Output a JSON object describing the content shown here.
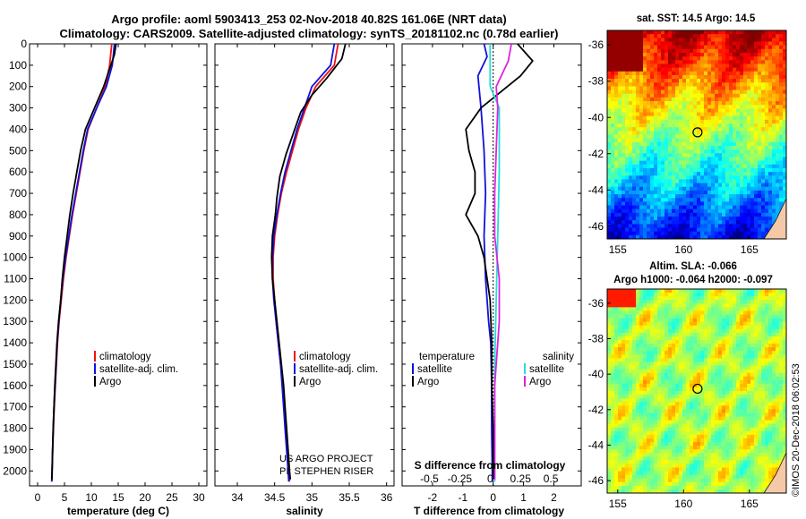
{
  "title_line1": "Argo profile: aoml 5903413_253 02-Nov-2018 40.82S 161.06E (NRT data)",
  "title_line2": "Climatology: CARS2009. Satellite-adjusted climatology: synTS_20181102.nc (0.78d earlier)",
  "credit_line1": "US ARGO PROJECT",
  "credit_line2": "PI: STEPHEN RISER",
  "side_stamp": "©IMOS 20-Dec-2018 06:02:53",
  "colors": {
    "climatology": "#ee1111",
    "satellite": "#1111dd",
    "argo": "#000000",
    "sat_salinity": "#22dddd",
    "argo_salinity": "#dd22dd"
  },
  "chart_data": [
    {
      "type": "line",
      "name": "temperature-profile",
      "xlabel": "temperature (deg C)",
      "xlim": [
        -1.5,
        31.5
      ],
      "xticks": [
        0,
        5,
        10,
        15,
        20,
        25,
        30
      ],
      "ylim": [
        0,
        2070
      ],
      "yticks": [
        0,
        100,
        200,
        300,
        400,
        500,
        600,
        700,
        800,
        900,
        1000,
        1100,
        1200,
        1300,
        1400,
        1500,
        1600,
        1700,
        1800,
        1900,
        2000
      ],
      "legend": [
        "climatology",
        "satellite-adj. clim.",
        "Argo"
      ],
      "series": [
        {
          "name": "climatology",
          "color": "#ee1111",
          "points": [
            [
              13.8,
              0
            ],
            [
              13.4,
              100
            ],
            [
              12.6,
              200
            ],
            [
              11.0,
              300
            ],
            [
              9.4,
              400
            ],
            [
              8.6,
              500
            ],
            [
              7.9,
              600
            ],
            [
              7.2,
              700
            ],
            [
              6.5,
              800
            ],
            [
              5.9,
              900
            ],
            [
              5.3,
              1000
            ],
            [
              4.8,
              1100
            ],
            [
              4.4,
              1200
            ],
            [
              4.0,
              1300
            ],
            [
              3.7,
              1400
            ],
            [
              3.5,
              1500
            ],
            [
              3.3,
              1600
            ],
            [
              3.1,
              1700
            ],
            [
              2.95,
              1800
            ],
            [
              2.8,
              1900
            ],
            [
              2.7,
              2000
            ],
            [
              2.65,
              2050
            ]
          ]
        },
        {
          "name": "satellite-adj. clim.",
          "color": "#1111dd",
          "points": [
            [
              14.3,
              0
            ],
            [
              13.9,
              100
            ],
            [
              12.8,
              200
            ],
            [
              11.0,
              300
            ],
            [
              9.3,
              400
            ],
            [
              8.5,
              500
            ],
            [
              7.8,
              600
            ],
            [
              7.1,
              700
            ],
            [
              6.4,
              800
            ],
            [
              5.8,
              900
            ],
            [
              5.2,
              1000
            ],
            [
              4.7,
              1100
            ],
            [
              4.3,
              1200
            ],
            [
              3.95,
              1300
            ],
            [
              3.65,
              1400
            ],
            [
              3.45,
              1500
            ],
            [
              3.25,
              1600
            ],
            [
              3.05,
              1700
            ],
            [
              2.9,
              1800
            ],
            [
              2.78,
              1900
            ],
            [
              2.68,
              2000
            ],
            [
              2.62,
              2050
            ]
          ]
        },
        {
          "name": "Argo",
          "color": "#000000",
          "points": [
            [
              14.6,
              0
            ],
            [
              14.3,
              50
            ],
            [
              12.3,
              200
            ],
            [
              10.6,
              300
            ],
            [
              8.9,
              400
            ],
            [
              8.0,
              500
            ],
            [
              7.3,
              600
            ],
            [
              6.6,
              700
            ],
            [
              6.0,
              800
            ],
            [
              5.5,
              900
            ],
            [
              5.0,
              1000
            ],
            [
              4.6,
              1100
            ],
            [
              4.3,
              1200
            ],
            [
              3.9,
              1300
            ],
            [
              3.6,
              1400
            ],
            [
              3.4,
              1500
            ],
            [
              3.2,
              1600
            ],
            [
              3.05,
              1700
            ],
            [
              2.9,
              1800
            ],
            [
              2.8,
              1900
            ],
            [
              2.7,
              2000
            ],
            [
              2.65,
              2040
            ]
          ]
        }
      ]
    },
    {
      "type": "line",
      "name": "salinity-profile",
      "xlabel": "salinity",
      "xlim": [
        33.7,
        36.1
      ],
      "xticks": [
        34,
        34.5,
        35,
        35.5,
        36
      ],
      "xtick_labels": [
        "34",
        "34.5",
        "35",
        "35.5",
        "36"
      ],
      "ylim": [
        0,
        2070
      ],
      "legend": [
        "climatology",
        "satellite-adj. clim.",
        "Argo"
      ],
      "series": [
        {
          "name": "climatology",
          "color": "#ee1111",
          "points": [
            [
              35.35,
              0
            ],
            [
              35.3,
              100
            ],
            [
              35.05,
              200
            ],
            [
              34.92,
              300
            ],
            [
              34.82,
              400
            ],
            [
              34.74,
              500
            ],
            [
              34.66,
              600
            ],
            [
              34.59,
              700
            ],
            [
              34.54,
              800
            ],
            [
              34.5,
              900
            ],
            [
              34.48,
              1000
            ],
            [
              34.48,
              1100
            ],
            [
              34.5,
              1200
            ],
            [
              34.52,
              1300
            ],
            [
              34.55,
              1400
            ],
            [
              34.58,
              1500
            ],
            [
              34.61,
              1600
            ],
            [
              34.63,
              1700
            ],
            [
              34.65,
              1800
            ],
            [
              34.67,
              1900
            ],
            [
              34.69,
              2000
            ],
            [
              34.7,
              2050
            ]
          ]
        },
        {
          "name": "satellite-adj. clim.",
          "color": "#1111dd",
          "points": [
            [
              35.3,
              0
            ],
            [
              35.25,
              100
            ],
            [
              35.0,
              200
            ],
            [
              34.9,
              300
            ],
            [
              34.8,
              400
            ],
            [
              34.72,
              500
            ],
            [
              34.64,
              600
            ],
            [
              34.58,
              700
            ],
            [
              34.53,
              800
            ],
            [
              34.49,
              900
            ],
            [
              34.47,
              1000
            ],
            [
              34.47,
              1100
            ],
            [
              34.49,
              1200
            ],
            [
              34.52,
              1300
            ],
            [
              34.55,
              1400
            ],
            [
              34.58,
              1500
            ],
            [
              34.6,
              1600
            ],
            [
              34.62,
              1700
            ],
            [
              34.64,
              1800
            ],
            [
              34.66,
              1900
            ],
            [
              34.68,
              2000
            ],
            [
              34.69,
              2050
            ]
          ]
        },
        {
          "name": "Argo",
          "color": "#000000",
          "points": [
            [
              35.45,
              0
            ],
            [
              35.4,
              70
            ],
            [
              35.2,
              160
            ],
            [
              35.0,
              240
            ],
            [
              34.85,
              320
            ],
            [
              34.75,
              420
            ],
            [
              34.65,
              520
            ],
            [
              34.57,
              620
            ],
            [
              34.53,
              720
            ],
            [
              34.51,
              800
            ],
            [
              34.47,
              900
            ],
            [
              34.46,
              1000
            ],
            [
              34.47,
              1100
            ],
            [
              34.5,
              1200
            ],
            [
              34.53,
              1300
            ],
            [
              34.56,
              1400
            ],
            [
              34.59,
              1500
            ],
            [
              34.62,
              1600
            ],
            [
              34.64,
              1700
            ],
            [
              34.66,
              1800
            ],
            [
              34.68,
              1900
            ],
            [
              34.7,
              2000
            ],
            [
              34.71,
              2040
            ]
          ]
        }
      ]
    },
    {
      "type": "line",
      "name": "difference-profile",
      "xlabel": "T difference from climatology",
      "xlabel_top": "S difference from climatology",
      "xlim": [
        -3,
        2.9
      ],
      "xticks": [
        -2,
        -1,
        0,
        1,
        2
      ],
      "xticks_top": [
        -0.5,
        -0.25,
        0,
        0.25,
        0.5
      ],
      "xticks_top_labels": [
        "-0.5",
        "-0.25",
        "0",
        "0.25",
        "0.5"
      ],
      "ylim": [
        0,
        2070
      ],
      "legend_left": {
        "heading": "temperature",
        "items": [
          "satellite",
          "Argo"
        ]
      },
      "legend_right": {
        "heading": "salinity",
        "items": [
          "satellite",
          "Argo"
        ]
      },
      "series": [
        {
          "name": "temperature satellite",
          "color": "#1111dd",
          "points": [
            [
              -0.3,
              0
            ],
            [
              -0.2,
              60
            ],
            [
              -0.5,
              150
            ],
            [
              -0.4,
              300
            ],
            [
              -0.3,
              500
            ],
            [
              -0.25,
              700
            ],
            [
              -0.3,
              900
            ],
            [
              -0.25,
              1100
            ],
            [
              -0.15,
              1300
            ],
            [
              -0.08,
              1400
            ],
            [
              -0.05,
              1600
            ],
            [
              -0.05,
              1800
            ],
            [
              -0.03,
              2000
            ],
            [
              -0.03,
              2050
            ]
          ]
        },
        {
          "name": "temperature Argo",
          "color": "#000000",
          "points": [
            [
              0.8,
              0
            ],
            [
              1.3,
              80
            ],
            [
              0.9,
              150
            ],
            [
              -0.4,
              300
            ],
            [
              -0.9,
              400
            ],
            [
              -0.8,
              500
            ],
            [
              -0.6,
              600
            ],
            [
              -0.6,
              700
            ],
            [
              -0.9,
              800
            ],
            [
              -0.5,
              900
            ],
            [
              -0.3,
              1000
            ],
            [
              -0.2,
              1100
            ],
            [
              -0.1,
              1200
            ],
            [
              -0.05,
              1400
            ],
            [
              -0.05,
              1600
            ],
            [
              0.0,
              1800
            ],
            [
              0.0,
              2000
            ],
            [
              0.0,
              2040
            ]
          ]
        },
        {
          "name": "salinity satellite",
          "color": "#22dddd",
          "points": [
            [
              -0.1,
              0
            ],
            [
              -0.1,
              100
            ],
            [
              -0.1,
              200
            ],
            [
              0.2,
              300
            ],
            [
              0.2,
              600
            ],
            [
              0.15,
              900
            ],
            [
              0.1,
              1200
            ],
            [
              0.05,
              1500
            ],
            [
              0.05,
              1800
            ],
            [
              0.05,
              2050
            ]
          ]
        },
        {
          "name": "salinity Argo",
          "color": "#dd22dd",
          "points": [
            [
              0.6,
              0
            ],
            [
              0.5,
              80
            ],
            [
              0.1,
              200
            ],
            [
              0.15,
              300
            ],
            [
              0.1,
              500
            ],
            [
              0.05,
              700
            ],
            [
              0.05,
              900
            ],
            [
              0.2,
              1100
            ],
            [
              0.2,
              1300
            ],
            [
              0.15,
              1400
            ],
            [
              0.05,
              1600
            ],
            [
              0.05,
              1800
            ],
            [
              0.05,
              2000
            ],
            [
              0.05,
              2040
            ]
          ]
        }
      ]
    },
    {
      "type": "heatmap",
      "name": "sst-map",
      "title": "sat. SST: 14.5 Argo: 14.5",
      "xticks": [
        155,
        160,
        165
      ],
      "yticks": [
        -36,
        -38,
        -40,
        -42,
        -44,
        -46
      ],
      "xlim": [
        154.2,
        167.8
      ],
      "ylim": [
        -46.7,
        -35.2
      ],
      "argo_location": [
        161.06,
        -40.82
      ]
    },
    {
      "type": "heatmap",
      "name": "sla-map",
      "title_line1": "Altim. SLA: -0.066",
      "title_line2": "Argo h1000: -0.064 h2000: -0.097",
      "xticks": [
        155,
        160,
        165
      ],
      "yticks": [
        -36,
        -38,
        -40,
        -42,
        -44,
        -46
      ],
      "xlim": [
        154.2,
        167.8
      ],
      "ylim": [
        -46.7,
        -35.2
      ],
      "argo_location": [
        161.06,
        -40.82
      ]
    }
  ]
}
